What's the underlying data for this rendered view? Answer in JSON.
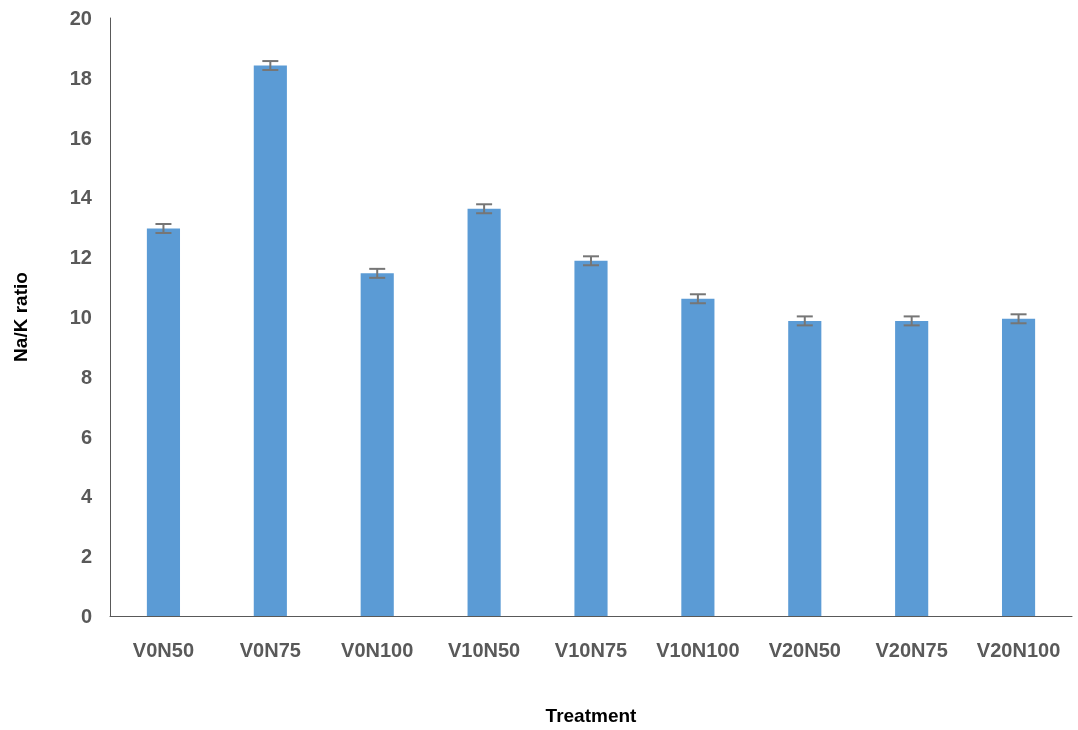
{
  "chart_data": {
    "type": "bar",
    "xlabel": "Treatment",
    "ylabel": "Na/K ratio",
    "categories": [
      "V0N50",
      "V0N75",
      "V0N100",
      "V10N50",
      "V10N75",
      "V10N100",
      "V20N50",
      "V20N75",
      "V20N100"
    ],
    "values": [
      12.96,
      18.41,
      11.46,
      13.62,
      11.88,
      10.61,
      9.87,
      9.87,
      9.94
    ],
    "errors": [
      0.15,
      0.15,
      0.15,
      0.15,
      0.15,
      0.15,
      0.15,
      0.15,
      0.15
    ],
    "color": "#5b9bd5",
    "ylim": [
      0,
      20
    ],
    "yticks": [
      0,
      2,
      4,
      6,
      8,
      10,
      12,
      14,
      16,
      18,
      20
    ],
    "grid": false
  }
}
